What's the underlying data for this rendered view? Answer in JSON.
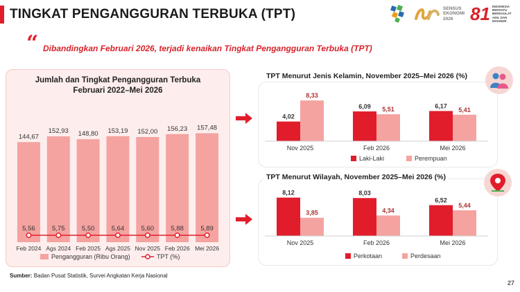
{
  "page": {
    "title": "TINGKAT PENGANGGURAN TERBUKA (TPT)",
    "headline": "Dibandingkan Februari 2026, terjadi kenaikan Tingkat Pengangguran Terbuka (TPT)",
    "source_label": "Sumber:",
    "source_text": "Badan Pusat Statistik, Survei Angkatan Kerja Nasional",
    "page_number": "27",
    "logos": {
      "sensus_line1": "SENSUS",
      "sensus_line2": "EKONOMI",
      "sensus_line3": "2026",
      "anniv_number": "81",
      "anniv_text": "INDONESIA BERSATU BERDAULAT ADIL DAN MAKMUR"
    }
  },
  "colors": {
    "accent": "#e11d2b",
    "bar_light": "#f4a3a0",
    "bar_dark": "#e11d2b",
    "panel_bg": "#fdeeed"
  },
  "icons": [
    "bps-logo",
    "sensus-ekonomi-logo",
    "hut-81-logo",
    "quote-icon",
    "arrow-right-icon",
    "gender-people-icon",
    "location-pin-icon"
  ],
  "chart_data": [
    {
      "type": "bar",
      "title": "Jumlah dan Tingkat Pengangguran Terbuka Februari 2022–Mei 2026",
      "title_line1": "Jumlah dan Tingkat Pengangguran Terbuka",
      "title_line2": "Februari 2022–Mei 2026",
      "categories": [
        "Feb 2024",
        "Ags 2024",
        "Feb 2025",
        "Ags 2025",
        "Nov 2025",
        "Feb 2026",
        "Mei 2026"
      ],
      "series": [
        {
          "name": "Pengangguran (Ribu Orang)",
          "type": "bar",
          "values": [
            144.67,
            152.93,
            148.8,
            153.19,
            152.0,
            156.23,
            157.48
          ],
          "labels": [
            "144,67",
            "152,93",
            "148,80",
            "153,19",
            "152,00",
            "156,23",
            "157,48"
          ]
        },
        {
          "name": "TPT (%)",
          "type": "line",
          "values": [
            5.56,
            5.75,
            5.5,
            5.64,
            5.6,
            5.88,
            5.89
          ],
          "labels": [
            "5,56",
            "5,75",
            "5,50",
            "5,64",
            "5,60",
            "5,88",
            "5,89"
          ]
        }
      ],
      "legend_position": "bottom"
    },
    {
      "type": "bar",
      "title": "TPT Menurut Jenis Kelamin, November 2025–Mei 2026 (%)",
      "categories": [
        "Nov 2025",
        "Feb 2026",
        "Mei 2026"
      ],
      "series": [
        {
          "name": "Laki-Laki",
          "values": [
            4.02,
            6.09,
            6.17
          ],
          "labels": [
            "4,02",
            "6,09",
            "6,17"
          ]
        },
        {
          "name": "Perempuan",
          "values": [
            8.33,
            5.51,
            5.41
          ],
          "labels": [
            "8,33",
            "5,51",
            "5,41"
          ]
        }
      ],
      "legend_position": "bottom"
    },
    {
      "type": "bar",
      "title": "TPT Menurut Wilayah, November 2025–Mei 2026 (%)",
      "categories": [
        "Nov 2025",
        "Feb 2026",
        "Mei 2026"
      ],
      "series": [
        {
          "name": "Perkotaan",
          "values": [
            8.12,
            8.03,
            6.52
          ],
          "labels": [
            "8,12",
            "8,03",
            "6,52"
          ]
        },
        {
          "name": "Perdesaan",
          "values": [
            3.85,
            4.34,
            5.44
          ],
          "labels": [
            "3,85",
            "4,34",
            "5,44"
          ]
        }
      ],
      "legend_position": "bottom"
    }
  ]
}
